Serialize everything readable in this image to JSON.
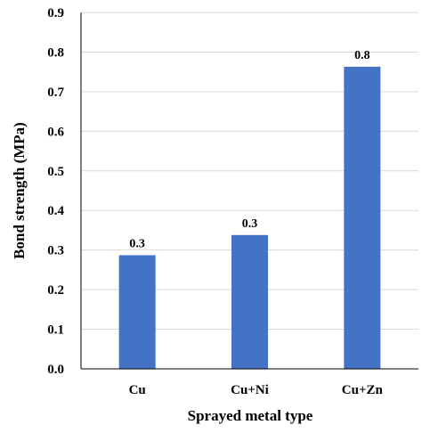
{
  "chart_data": {
    "type": "bar",
    "categories": [
      "Cu",
      "Cu+Ni",
      "Cu+Zn"
    ],
    "values": [
      0.287,
      0.338,
      0.763
    ],
    "data_labels": [
      "0.3",
      "0.3",
      "0.8"
    ],
    "xlabel": "Sprayed metal type",
    "ylabel": "Bond strength (MPa)",
    "ylim": [
      0,
      0.9
    ],
    "yticks": [
      0.0,
      0.1,
      0.2,
      0.3,
      0.4,
      0.5,
      0.6,
      0.7,
      0.8,
      0.9
    ],
    "ytick_labels": [
      "0.0",
      "0.1",
      "0.2",
      "0.3",
      "0.4",
      "0.5",
      "0.6",
      "0.7",
      "0.8",
      "0.9"
    ],
    "grid": true,
    "colors": {
      "bar": "#4472C4",
      "grid": "#d9d9d9",
      "axis": "#000000"
    }
  }
}
